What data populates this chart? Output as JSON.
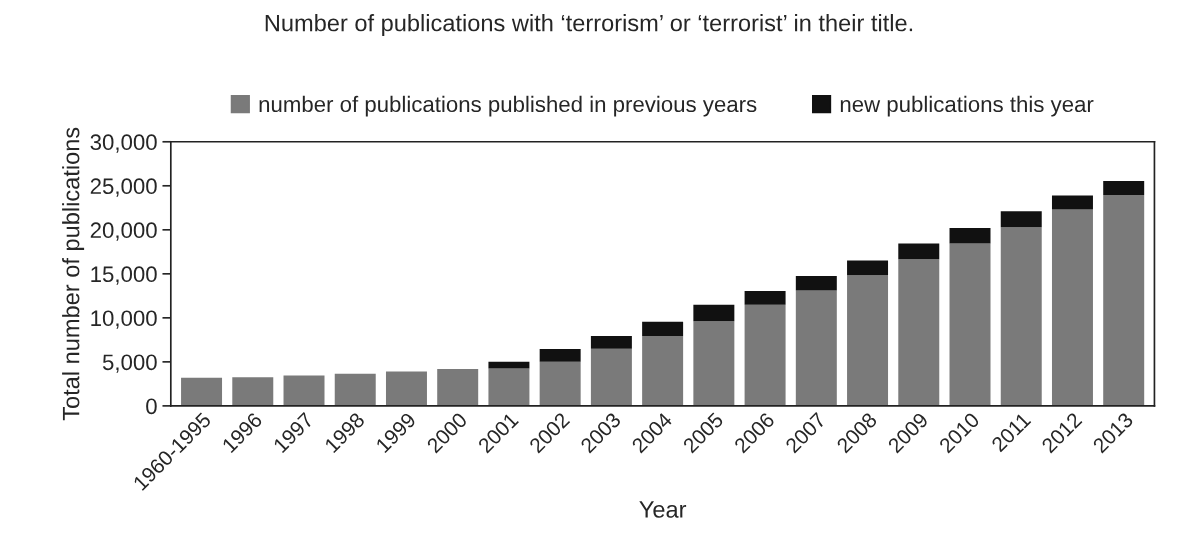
{
  "chart_data": {
    "type": "bar",
    "title": "Number of publications with ‘terrorism’ or ‘terrorist’ in their title.",
    "xlabel": "Year",
    "ylabel": "Total number of publications",
    "categories": [
      "1960-1995",
      "1996",
      "1997",
      "1998",
      "1999",
      "2000",
      "2001",
      "2002",
      "2003",
      "2004",
      "2005",
      "2006",
      "2007",
      "2008",
      "2009",
      "2010",
      "2011",
      "2012",
      "2013"
    ],
    "stacked": true,
    "series": [
      {
        "name": "number of publications published in previous years",
        "color": "#7a7a7a",
        "values": [
          3200,
          3250,
          3450,
          3650,
          3900,
          4200,
          4250,
          5000,
          6500,
          7950,
          9600,
          11500,
          13100,
          14850,
          16650,
          18450,
          20300,
          22300,
          23950
        ]
      },
      {
        "name": "new publications this year",
        "color": "#111111",
        "values": [
          0,
          0,
          0,
          0,
          0,
          0,
          750,
          1450,
          1450,
          1600,
          1900,
          1550,
          1650,
          1650,
          1800,
          1750,
          1800,
          1600,
          1600
        ]
      }
    ],
    "ylim": [
      0,
      30000
    ],
    "yticks": [
      0,
      {
        "value": 5000,
        "label": "5,000"
      },
      {
        "value": 10000,
        "label": "10,000"
      },
      {
        "value": 15000,
        "label": "15,000"
      },
      {
        "value": 20000,
        "label": "20,000"
      },
      {
        "value": 25000,
        "label": "25,000"
      },
      {
        "value": 30000,
        "label": "30,000"
      }
    ],
    "grid": false,
    "legend": "top"
  }
}
